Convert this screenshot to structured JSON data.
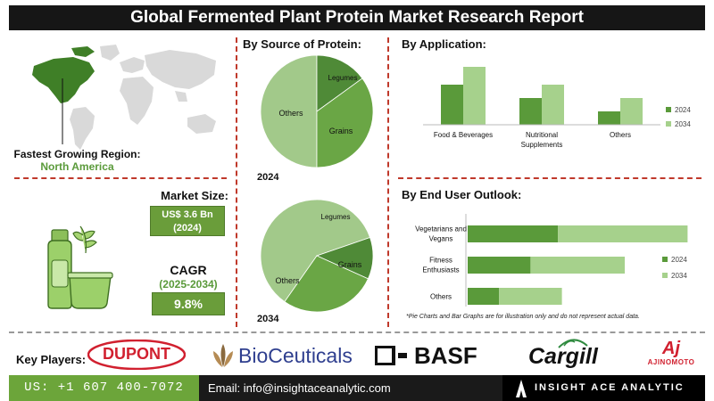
{
  "title": "Global Fermented Plant Protein Market Research Report",
  "region": {
    "label": "Fastest Growing Region:",
    "value": "North America"
  },
  "market_size": {
    "label": "Market Size:",
    "value": "US$ 3.6 Bn",
    "year": "(2024)"
  },
  "cagr": {
    "label": "CAGR",
    "period": "(2025-2034)",
    "value": "9.8%"
  },
  "source": {
    "header": "By Source of Protein:",
    "colors": [
      "#a2c98a",
      "#4f8a37",
      "#6aa645"
    ],
    "pie_2024": {
      "year": "2024",
      "labels": [
        "Others",
        "Legumes",
        "Grains"
      ]
    },
    "pie_2034": {
      "year": "2034",
      "labels": [
        "Others",
        "Legumes",
        "Grains"
      ]
    }
  },
  "application": {
    "header": "By  Application:"
  },
  "end_user": {
    "header": "By End User Outlook:"
  },
  "note": "*Pie Charts and Bar Graphs are for illustration only and do not represent actual data.",
  "key_players": {
    "label": "Key Players:",
    "logos": [
      "DUPONT",
      "BioCeuticals",
      "BASF",
      "Cargill",
      "AJINOMOTO"
    ],
    "ajinomoto_mark": "Aj"
  },
  "footer": {
    "phone": "US: +1 607 400-7072",
    "email": "Email: info@insightaceanalytic.com",
    "brand": "INSIGHT ACE ANALYTIC"
  },
  "chart_data": [
    {
      "type": "pie",
      "year": "2024",
      "labels": [
        "Others",
        "Legumes",
        "Grains"
      ],
      "values": [
        50,
        15,
        35
      ]
    },
    {
      "type": "pie",
      "year": "2034",
      "labels": [
        "Others",
        "Legumes",
        "Grains"
      ],
      "values": [
        60,
        12,
        28
      ]
    },
    {
      "type": "bar",
      "categories": [
        "Food & Beverages",
        "Nutritional Supplements",
        "Others"
      ],
      "series": [
        {
          "name": "2024",
          "values": [
            4.5,
            3.0,
            1.5
          ],
          "color": "#5a9a3a"
        },
        {
          "name": "2034",
          "values": [
            6.5,
            4.5,
            3.0
          ],
          "color": "#a6d18c"
        }
      ],
      "ylim": [
        0,
        7
      ],
      "legend": "right"
    },
    {
      "type": "bar",
      "orientation": "horizontal",
      "categories": [
        "Vegetarians and Vegans",
        "Fitness Enthusiasts",
        "Others"
      ],
      "series": [
        {
          "name": "2024",
          "values": [
            2.3,
            1.6,
            0.8
          ],
          "color": "#5a9a3a"
        },
        {
          "name": "2034",
          "values": [
            3.3,
            2.4,
            1.6
          ],
          "color": "#a6d18c"
        }
      ],
      "xlim": [
        0,
        6
      ],
      "stacked": true,
      "legend": "right"
    }
  ]
}
